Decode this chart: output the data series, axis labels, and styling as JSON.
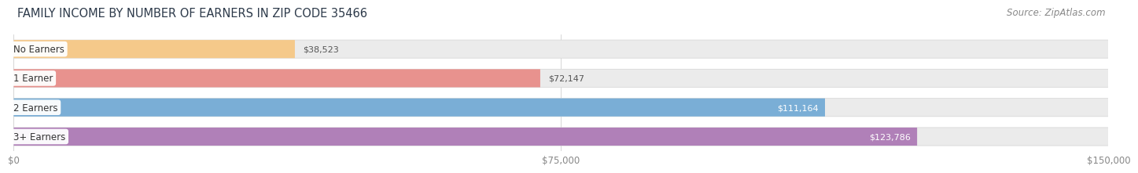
{
  "title": "FAMILY INCOME BY NUMBER OF EARNERS IN ZIP CODE 35466",
  "source": "Source: ZipAtlas.com",
  "categories": [
    "No Earners",
    "1 Earner",
    "2 Earners",
    "3+ Earners"
  ],
  "values": [
    38523,
    72147,
    111164,
    123786
  ],
  "bar_colors": [
    "#f5c98a",
    "#e8928e",
    "#7aaed6",
    "#b080b8"
  ],
  "bar_bg_color": "#ebebeb",
  "max_value": 150000,
  "xticks": [
    0,
    75000,
    150000
  ],
  "xtick_labels": [
    "$0",
    "$75,000",
    "$150,000"
  ],
  "value_labels": [
    "$38,523",
    "$72,147",
    "$111,164",
    "$123,786"
  ],
  "value_inside": [
    false,
    false,
    true,
    true
  ],
  "fig_bg_color": "#ffffff",
  "bar_height": 0.62,
  "title_fontsize": 10.5,
  "source_fontsize": 8.5,
  "label_fontsize": 8.5,
  "value_fontsize": 8.0,
  "tick_fontsize": 8.5,
  "title_color": "#2d3a4a",
  "source_color": "#888888",
  "label_text_color": "#333333",
  "outside_value_color": "#555555",
  "inside_value_color": "#ffffff",
  "grid_color": "#d0d0d0",
  "bg_bar_edge_color": "#d8d8d8"
}
